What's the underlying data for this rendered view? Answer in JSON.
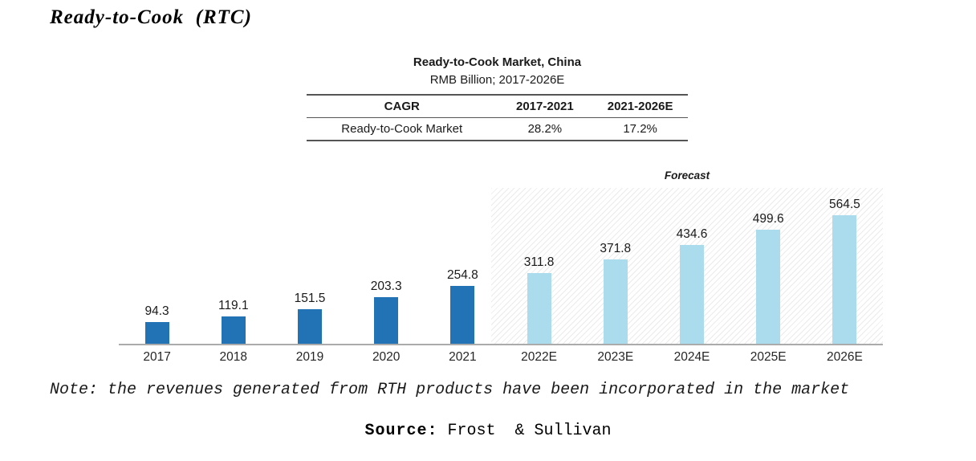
{
  "page_title": "Ready-to-Cook  (RTC)",
  "table": {
    "title": "Ready-to-Cook Market, China",
    "subtitle": "RMB Billion; 2017-2026E",
    "headers": [
      "CAGR",
      "2017-2021",
      "2021-2026E"
    ],
    "rows": [
      [
        "Ready-to-Cook Market",
        "28.2%",
        "17.2%"
      ]
    ]
  },
  "chart_data": {
    "type": "bar",
    "title": "Ready-to-Cook Market, China",
    "subtitle": "RMB Billion; 2017-2026E",
    "categories": [
      "2017",
      "2018",
      "2019",
      "2020",
      "2021",
      "2022E",
      "2023E",
      "2024E",
      "2025E",
      "2026E"
    ],
    "values": [
      94.3,
      119.1,
      151.5,
      203.3,
      254.8,
      311.8,
      371.8,
      434.6,
      499.6,
      564.5
    ],
    "forecast_label": "Forecast",
    "forecast_start_index": 5,
    "colors": {
      "historical": "#2273B6",
      "forecast": "#AADCEE",
      "axis": "#ABABAB"
    },
    "ylim": [
      0,
      600
    ],
    "grid": false,
    "legend": "none",
    "data_labels": true
  },
  "note": "Note: the revenues generated from RTH products have been incorporated in the market",
  "source": {
    "label": "Source:",
    "text": " Frost  & Sullivan"
  }
}
